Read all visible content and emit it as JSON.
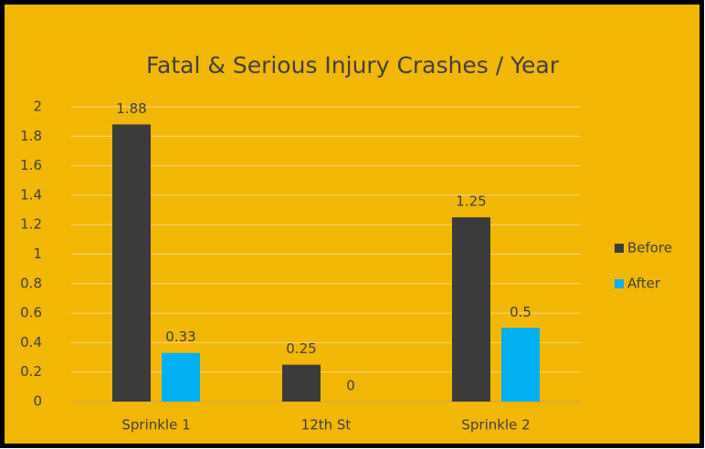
{
  "chart_data": {
    "type": "bar",
    "title": "Fatal & Serious Injury Crashes / Year",
    "categories": [
      "Sprinkle 1",
      "12th St",
      "Sprinkle 2"
    ],
    "series": [
      {
        "name": "Before",
        "color": "#3b3b3b",
        "values": [
          1.88,
          0.25,
          1.25
        ]
      },
      {
        "name": "After",
        "color": "#00b0f0",
        "values": [
          0.33,
          0,
          0.5
        ]
      }
    ],
    "ylim": [
      0,
      2
    ],
    "yticks": [
      0,
      0.2,
      0.4,
      0.6,
      0.8,
      1,
      1.2,
      1.4,
      1.6,
      1.8,
      2
    ],
    "grid": true,
    "legend": "right"
  }
}
